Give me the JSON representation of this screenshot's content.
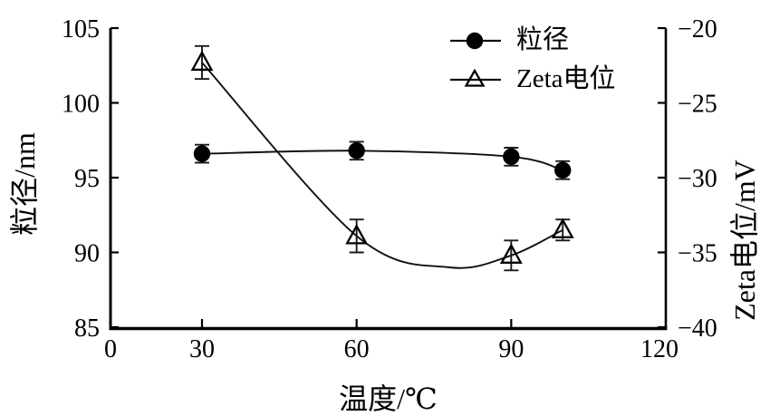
{
  "chart_data": {
    "type": "line",
    "title": "",
    "x_axis": {
      "label": "温度/℃",
      "ticks": [
        0,
        30,
        60,
        90,
        120
      ],
      "range": [
        0,
        120
      ]
    },
    "y_axis_left": {
      "label": "粒径/nm",
      "ticks": [
        105,
        100,
        95,
        90,
        85
      ],
      "range": [
        85,
        105
      ]
    },
    "y_axis_right": {
      "label": "Zeta电位/mV",
      "ticks": [
        -20,
        -25,
        -30,
        -35,
        -40
      ],
      "range": [
        -40,
        -20
      ]
    },
    "grid": false,
    "legend": {
      "position": "top-center"
    },
    "series": [
      {
        "name": "粒径",
        "axis": "left",
        "marker": "filled-circle",
        "color": "#000000",
        "x": [
          30,
          60,
          90,
          100
        ],
        "y": [
          96.6,
          96.8,
          96.4,
          95.5
        ],
        "y_err": [
          0.6,
          0.6,
          0.6,
          0.6
        ]
      },
      {
        "name": "Zeta电位",
        "axis": "right",
        "marker": "open-triangle",
        "color": "#000000",
        "x": [
          30,
          60,
          90,
          100
        ],
        "y": [
          -22.3,
          -33.9,
          -35.2,
          -33.5
        ],
        "y_err": [
          1.1,
          1.1,
          1.0,
          0.7
        ]
      }
    ]
  }
}
